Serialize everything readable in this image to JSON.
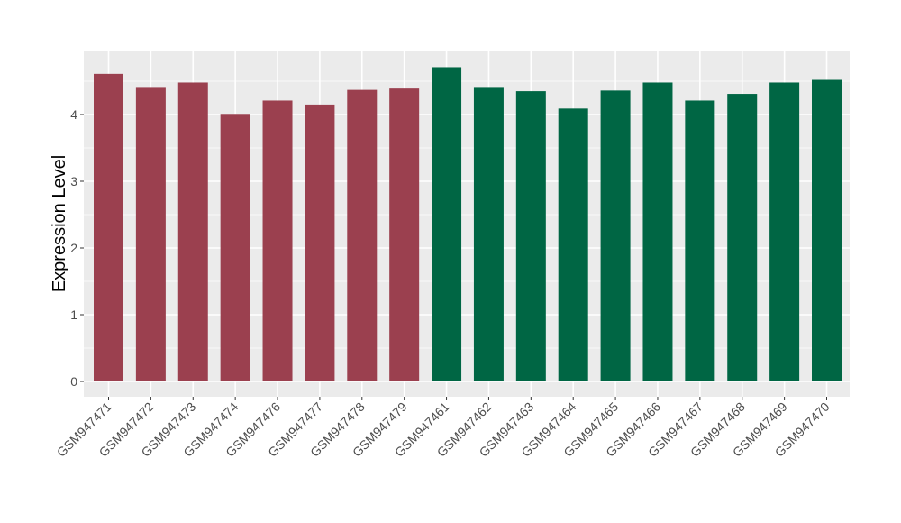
{
  "chart_data": {
    "type": "bar",
    "title": "",
    "xlabel": "",
    "ylabel": "Expression Level",
    "ylim": [
      0,
      4.8
    ],
    "yticks": [
      0,
      1,
      2,
      3,
      4
    ],
    "grid": true,
    "legend": "none",
    "categories": [
      "GSM947471",
      "GSM947472",
      "GSM947473",
      "GSM947474",
      "GSM947476",
      "GSM947477",
      "GSM947478",
      "GSM947479",
      "GSM947461",
      "GSM947462",
      "GSM947463",
      "GSM947464",
      "GSM947465",
      "GSM947466",
      "GSM947467",
      "GSM947468",
      "GSM947469",
      "GSM947470"
    ],
    "values": [
      4.61,
      4.4,
      4.48,
      4.01,
      4.21,
      4.15,
      4.37,
      4.39,
      4.71,
      4.4,
      4.35,
      4.09,
      4.36,
      4.48,
      4.21,
      4.31,
      4.48,
      4.52
    ],
    "colors": [
      "#9b404f",
      "#9b404f",
      "#9b404f",
      "#9b404f",
      "#9b404f",
      "#9b404f",
      "#9b404f",
      "#9b404f",
      "#006644",
      "#006644",
      "#006644",
      "#006644",
      "#006644",
      "#006644",
      "#006644",
      "#006644",
      "#006644",
      "#006644"
    ],
    "panel_color": "#ebebeb",
    "grid_color": "#ffffff"
  }
}
